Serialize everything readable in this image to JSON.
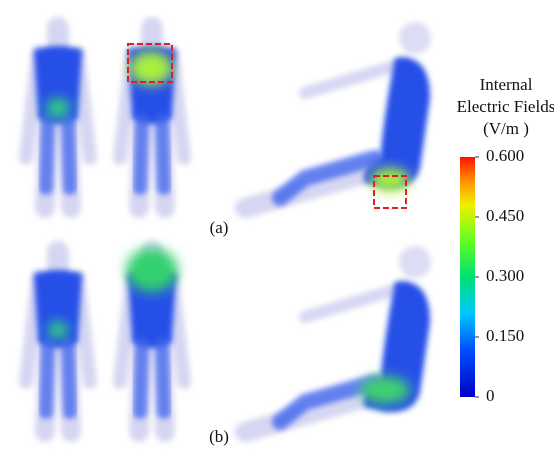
{
  "panels": [
    {
      "label": "(a)"
    },
    {
      "label": "(b)"
    }
  ],
  "colorbar": {
    "title": [
      "Internal",
      "Electric Fields",
      "(V/m )"
    ],
    "range": [
      0,
      0.6
    ],
    "ticks": [
      {
        "value": 0.6,
        "label": "0.600"
      },
      {
        "value": 0.45,
        "label": "0.450"
      },
      {
        "value": 0.3,
        "label": "0.300"
      },
      {
        "value": 0.15,
        "label": "0.150"
      },
      0
    ]
  }
}
